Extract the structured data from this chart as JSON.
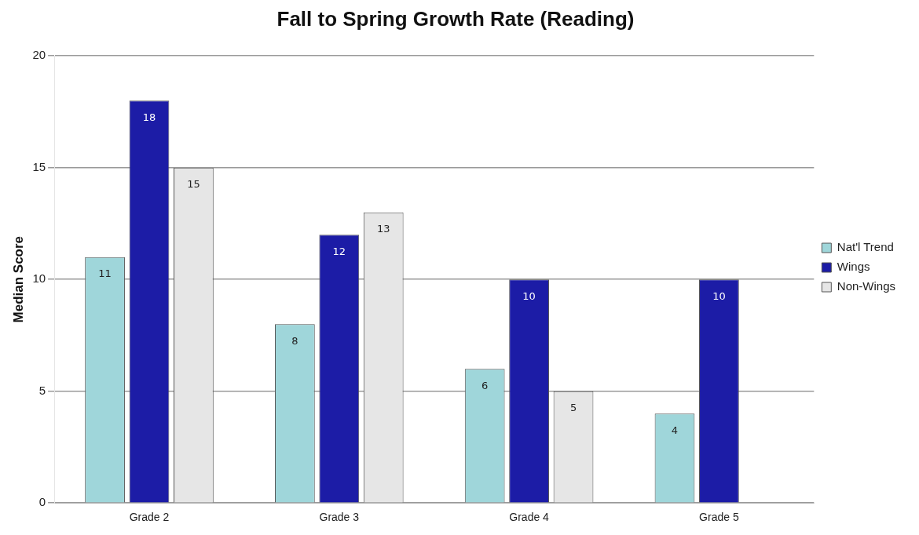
{
  "chart_data": {
    "type": "bar",
    "title": "Fall to Spring Growth Rate (Reading)",
    "ylabel": "Median Score",
    "categories": [
      "Grade 2",
      "Grade 3",
      "Grade 4",
      "Grade 5"
    ],
    "series": [
      {
        "name": "Nat'l Trend",
        "color": "#9fd6da",
        "values": [
          11,
          8,
          6,
          4
        ]
      },
      {
        "name": "Wings",
        "color": "#1c1ca6",
        "values": [
          18,
          12,
          10,
          10
        ]
      },
      {
        "name": "Non-Wings",
        "color": "#e6e6e6",
        "values": [
          15,
          13,
          5,
          null
        ]
      }
    ],
    "ylim": [
      0,
      20
    ],
    "yticks": [
      0,
      5,
      10,
      15,
      20
    ],
    "grid": "y",
    "legend": "right",
    "data_labels": true
  }
}
